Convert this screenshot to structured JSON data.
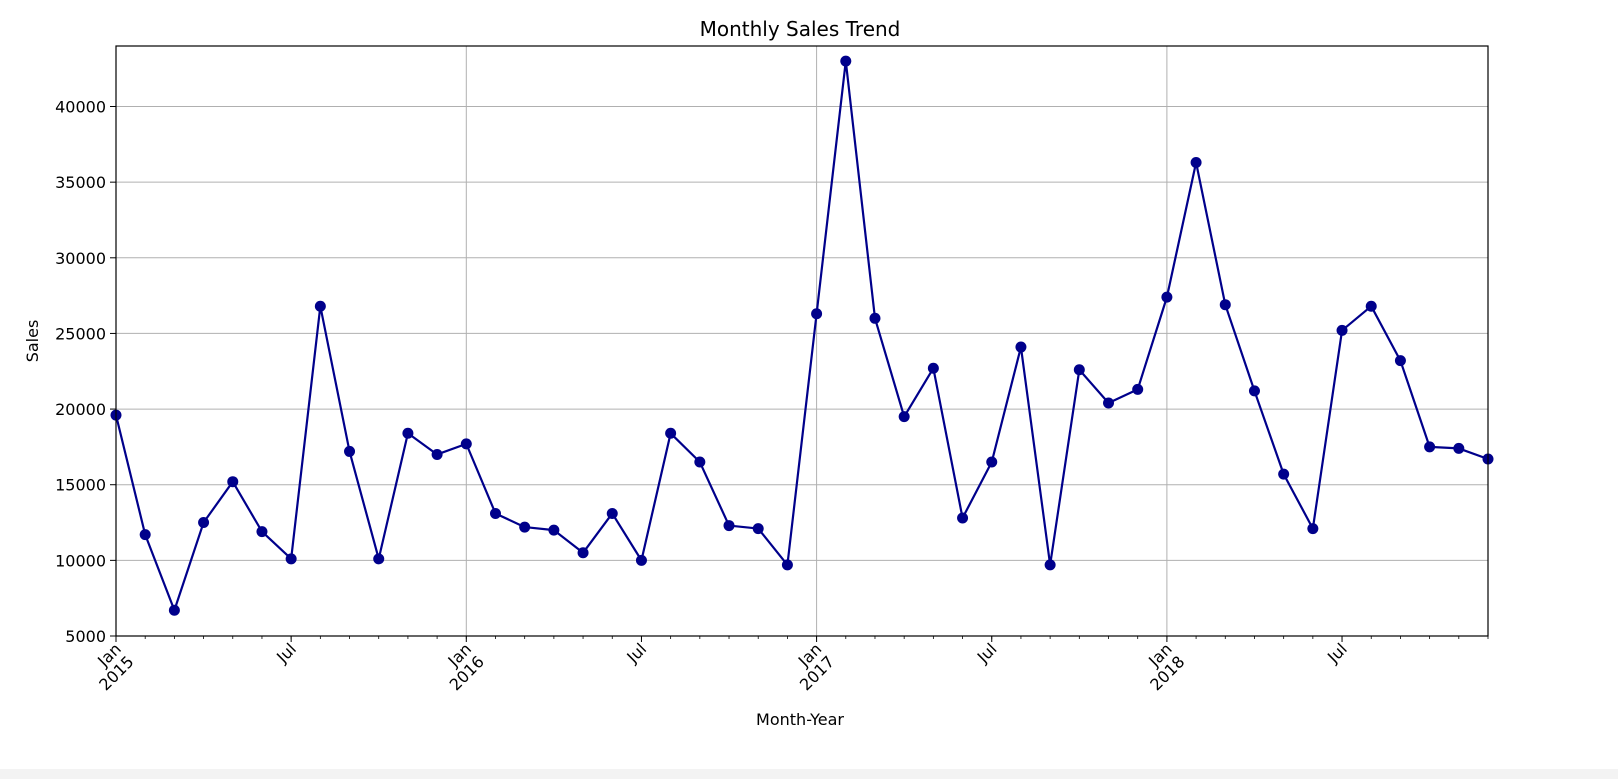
{
  "chart_data": {
    "type": "line",
    "title": "Monthly Sales Trend",
    "xlabel": "Month-Year",
    "ylabel": "Sales",
    "ylim": [
      5000,
      44000
    ],
    "xlim": [
      "2015-01",
      "2018-12"
    ],
    "yticks": [
      5000,
      10000,
      15000,
      20000,
      25000,
      30000,
      35000,
      40000
    ],
    "xticks": [
      {
        "month": "2015-01",
        "label": "Jan\n2015"
      },
      {
        "month": "2015-07",
        "label": "Jul"
      },
      {
        "month": "2016-01",
        "label": "Jan\n2016"
      },
      {
        "month": "2016-07",
        "label": "Jul"
      },
      {
        "month": "2017-01",
        "label": "Jan\n2017"
      },
      {
        "month": "2017-07",
        "label": "Jul"
      },
      {
        "month": "2018-01",
        "label": "Jan\n2018"
      },
      {
        "month": "2018-07",
        "label": "Jul"
      }
    ],
    "grid": true,
    "color": "#00008b",
    "marker": "circle",
    "series": [
      {
        "x": [
          "2015-01",
          "2015-02",
          "2015-03",
          "2015-04",
          "2015-05",
          "2015-06",
          "2015-07",
          "2015-08",
          "2015-09",
          "2015-10",
          "2015-11",
          "2015-12",
          "2016-01",
          "2016-02",
          "2016-03",
          "2016-04",
          "2016-05",
          "2016-06",
          "2016-07",
          "2016-08",
          "2016-09",
          "2016-10",
          "2016-11",
          "2016-12",
          "2017-01",
          "2017-02",
          "2017-03",
          "2017-04",
          "2017-05",
          "2017-06",
          "2017-07",
          "2017-08",
          "2017-09",
          "2017-10",
          "2017-11",
          "2017-12",
          "2018-01",
          "2018-02",
          "2018-03",
          "2018-04",
          "2018-05",
          "2018-06",
          "2018-07",
          "2018-08",
          "2018-09",
          "2018-10",
          "2018-11",
          "2018-12"
        ],
        "values": [
          19600,
          11700,
          6700,
          12500,
          15200,
          11900,
          10100,
          26800,
          17200,
          10100,
          18400,
          17000,
          17700,
          13100,
          12200,
          12000,
          10500,
          13100,
          10000,
          18400,
          16500,
          12300,
          12100,
          9700,
          26300,
          43000,
          26000,
          19500,
          22700,
          12800,
          16500,
          24100,
          9700,
          22600,
          20400,
          21300,
          27400,
          36300,
          26900,
          21200,
          15700,
          12100,
          25200,
          26800,
          23200,
          17500,
          17400,
          16700
        ]
      }
    ]
  }
}
